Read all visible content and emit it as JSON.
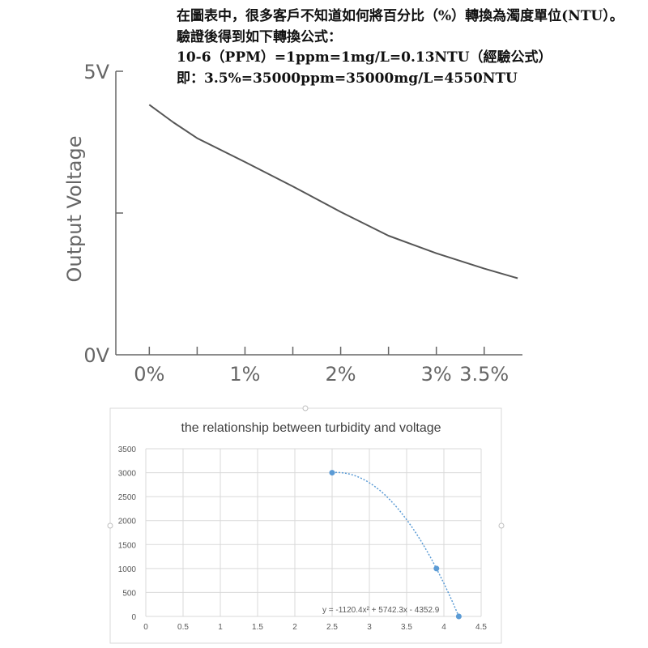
{
  "notes": {
    "paragraph": "在圖表中，很多客戶不知道如何將百分比（%）轉換為濁度單位(NTU）。",
    "line2": "驗證後得到如下轉換公式：",
    "line3": "10-6（PPM）=1ppm=1mg/L=0.13NTU（經驗公式）",
    "line4": "即：3.5%=35000ppm=35000mg/L=4550NTU"
  },
  "chart_data": [
    {
      "type": "line",
      "title": "",
      "ylabel": "Output Voltage",
      "xlabel": "",
      "x_tick_labels": [
        "0%",
        "1%",
        "2%",
        "3%",
        "3.5%"
      ],
      "x_tick_values": [
        0,
        1,
        2,
        3,
        3.5
      ],
      "y_tick_labels": [
        "5V",
        "0V"
      ],
      "y_tick_values": [
        5,
        0
      ],
      "xlim": [
        -0.35,
        3.9
      ],
      "ylim": [
        0,
        5
      ],
      "series": [
        {
          "x": [
            0,
            0.25,
            0.5,
            1.0,
            1.5,
            2.0,
            2.5,
            3.0,
            3.5,
            3.85
          ],
          "y": [
            4.41,
            4.1,
            3.82,
            3.4,
            2.97,
            2.52,
            2.1,
            1.79,
            1.52,
            1.35
          ]
        }
      ],
      "grid": false,
      "line_color": "#555555"
    },
    {
      "type": "scatter",
      "title": "the relationship between turbidity and voltage",
      "xlabel": "",
      "ylabel": "",
      "x_ticks": [
        "0",
        "0.5",
        "1",
        "1.5",
        "2",
        "2.5",
        "3",
        "3.5",
        "4",
        "4.5"
      ],
      "y_ticks": [
        "0",
        "500",
        "1000",
        "1500",
        "2000",
        "2500",
        "3000",
        "3500"
      ],
      "xlim": [
        0,
        4.5
      ],
      "ylim": [
        0,
        3500
      ],
      "grid": true,
      "series": [
        {
          "x": [
            2.5,
            3.9,
            4.2
          ],
          "y": [
            3000,
            1000,
            0
          ],
          "color": "#5B9BD5"
        }
      ],
      "trendline": {
        "type": "polynomial",
        "coefficients": [
          -1120.4,
          5742.3,
          -4352.9
        ],
        "x_range": [
          2.5,
          4.2
        ],
        "equation": "y = -1120.4x² + 5742.3x - 4352.9",
        "color": "#5B9BD5"
      }
    }
  ]
}
